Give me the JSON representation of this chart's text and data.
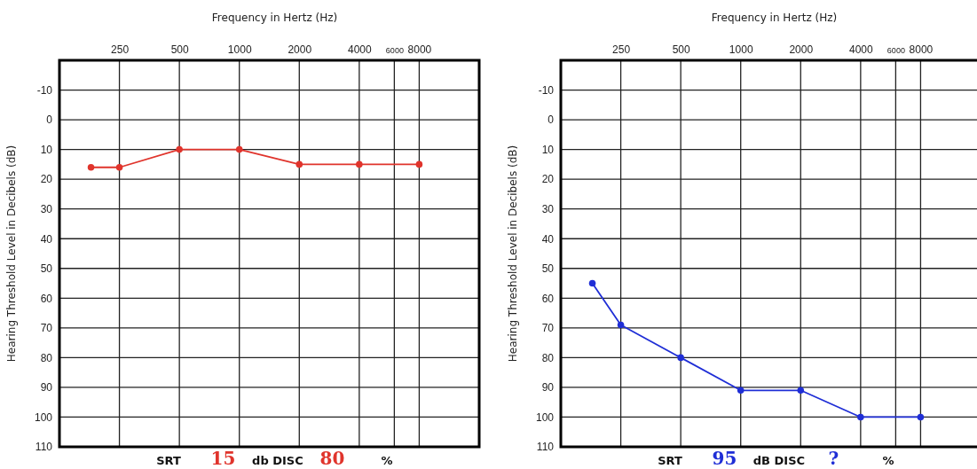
{
  "chart_data": [
    {
      "type": "line",
      "xlabel": "Frequency in Hertz (Hz)",
      "ylabel": "Hearing Threshold Level in Decibels (dB)",
      "log": "x",
      "grid": true,
      "marker": "circle",
      "line_style": "solid",
      "x": [
        180,
        250,
        500,
        1000,
        2000,
        4000,
        8000
      ],
      "xlim": [
        125,
        16000
      ],
      "xticks": [
        250,
        500,
        1000,
        2000,
        4000,
        6000,
        8000
      ],
      "ylim": [
        110,
        -20
      ],
      "yticks": [
        -10,
        0,
        10,
        20,
        30,
        40,
        50,
        60,
        70,
        80,
        90,
        100,
        110
      ],
      "series": [
        {
          "color": "#e0342c",
          "values": [
            16,
            16,
            10,
            10,
            15,
            15,
            15
          ]
        }
      ],
      "annotations": [
        "SRT",
        "15",
        "db DISC",
        "80",
        "%"
      ]
    },
    {
      "type": "line",
      "xlabel": "Frequency in Hertz (Hz)",
      "ylabel": "Hearing Threshold Level in Decibels (dB)",
      "log": "x",
      "grid": true,
      "marker": "circle",
      "line_style": "solid",
      "x": [
        180,
        250,
        500,
        1000,
        2000,
        4000,
        8000
      ],
      "xlim": [
        125,
        16000
      ],
      "xticks": [
        250,
        500,
        1000,
        2000,
        4000,
        6000,
        8000
      ],
      "ylim": [
        110,
        -20
      ],
      "yticks": [
        -10,
        0,
        10,
        20,
        30,
        40,
        50,
        60,
        70,
        80,
        90,
        100,
        110
      ],
      "series": [
        {
          "color": "#1f2ed6",
          "values": [
            55,
            69,
            80,
            91,
            91,
            100,
            100
          ]
        }
      ],
      "annotations": [
        "SRT",
        "95",
        "dB DISC",
        "?",
        "%"
      ]
    }
  ]
}
